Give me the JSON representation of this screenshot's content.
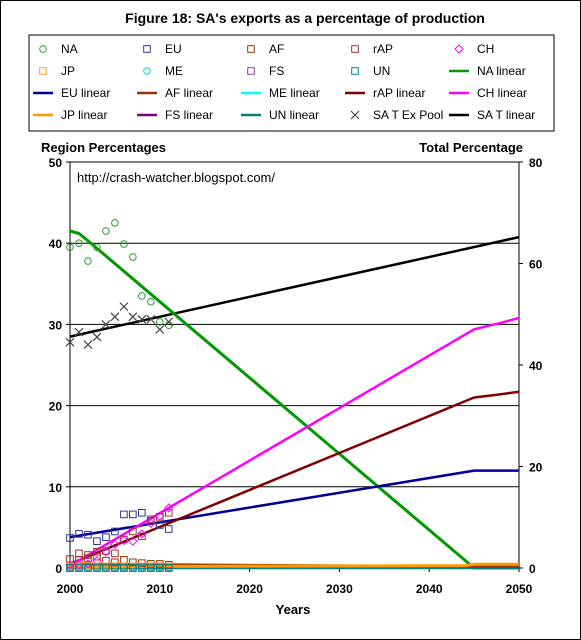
{
  "chart_data": {
    "type": "scatter",
    "title": "Figure 18: SA's exports as a percentage of production",
    "watermark": "http://crash-watcher.blogspot.com/",
    "xlabel": "Years",
    "ylabel_left": "Region Percentages",
    "ylabel_right": "Total Percentage",
    "xlim": [
      2000,
      2050
    ],
    "ylim_left": [
      0,
      50
    ],
    "ylim_right": [
      0,
      80
    ],
    "x_ticks": [
      "2000",
      "2010",
      "2020",
      "2030",
      "2040",
      "2050"
    ],
    "y_left_ticks": [
      "0",
      "10",
      "20",
      "30",
      "40",
      "50"
    ],
    "y_right_ticks": [
      "0",
      "20",
      "40",
      "60",
      "80"
    ],
    "grid": "horizontal",
    "legend_placement": "top",
    "legend": [
      {
        "label": "NA",
        "kind": "marker",
        "marker": "circle",
        "color": "#339933"
      },
      {
        "label": "EU",
        "kind": "marker",
        "marker": "square",
        "color": "#333399"
      },
      {
        "label": "AF",
        "kind": "marker",
        "marker": "square",
        "color": "#993300"
      },
      {
        "label": "rAP",
        "kind": "marker",
        "marker": "square",
        "color": "#993333"
      },
      {
        "label": "CH",
        "kind": "marker",
        "marker": "diamond",
        "color": "#ff00ff"
      },
      {
        "label": "JP",
        "kind": "marker",
        "marker": "square",
        "color": "#ff9933"
      },
      {
        "label": "ME",
        "kind": "marker",
        "marker": "circle",
        "color": "#00cccc"
      },
      {
        "label": "FS",
        "kind": "marker",
        "marker": "square",
        "color": "#993399"
      },
      {
        "label": "UN",
        "kind": "marker",
        "marker": "square",
        "color": "#008080"
      },
      {
        "label": "NA linear",
        "kind": "line",
        "color": "#009900"
      },
      {
        "label": "EU linear",
        "kind": "line",
        "color": "#000099"
      },
      {
        "label": "AF linear",
        "kind": "line",
        "color": "#993300"
      },
      {
        "label": "ME linear",
        "kind": "line",
        "color": "#00ffff"
      },
      {
        "label": "rAP linear",
        "kind": "line",
        "color": "#800000"
      },
      {
        "label": "CH linear",
        "kind": "line",
        "color": "#ff00ff"
      },
      {
        "label": "JP linear",
        "kind": "line",
        "color": "#ff9900"
      },
      {
        "label": "FS linear",
        "kind": "line",
        "color": "#800080"
      },
      {
        "label": "UN linear",
        "kind": "line",
        "color": "#008080"
      },
      {
        "label": "SA T Ex Pool",
        "kind": "marker",
        "marker": "x",
        "color": "#444444"
      },
      {
        "label": "SA T linear",
        "kind": "line",
        "color": "#000000"
      }
    ],
    "scatter_series": [
      {
        "name": "NA",
        "axis": "left",
        "marker": "circle",
        "color": "#339933",
        "points": [
          [
            2000,
            39.5
          ],
          [
            2001,
            40
          ],
          [
            2002,
            37.8
          ],
          [
            2003,
            39.5
          ],
          [
            2004,
            41.5
          ],
          [
            2005,
            42.5
          ],
          [
            2006,
            39.9
          ],
          [
            2007,
            38.3
          ],
          [
            2008,
            33.5
          ],
          [
            2009,
            32.8
          ],
          [
            2010,
            30.3
          ],
          [
            2011,
            29.9
          ]
        ]
      },
      {
        "name": "EU",
        "axis": "left",
        "marker": "square",
        "color": "#333399",
        "points": [
          [
            2000,
            3.7
          ],
          [
            2001,
            4.2
          ],
          [
            2002,
            4.1
          ],
          [
            2003,
            3.3
          ],
          [
            2004,
            3.8
          ],
          [
            2005,
            4.5
          ],
          [
            2006,
            6.6
          ],
          [
            2007,
            6.6
          ],
          [
            2008,
            6.8
          ],
          [
            2009,
            5.8
          ],
          [
            2010,
            5.3
          ],
          [
            2011,
            4.8
          ]
        ]
      },
      {
        "name": "AF",
        "axis": "left",
        "marker": "square",
        "color": "#993300",
        "points": [
          [
            2000,
            1.1
          ],
          [
            2001,
            1.0
          ],
          [
            2002,
            1.2
          ],
          [
            2003,
            1.4
          ],
          [
            2004,
            0.9
          ],
          [
            2005,
            0.7
          ],
          [
            2006,
            1.0
          ],
          [
            2007,
            0.7
          ],
          [
            2008,
            0.6
          ],
          [
            2009,
            0.5
          ],
          [
            2010,
            0.5
          ],
          [
            2011,
            0.4
          ]
        ]
      },
      {
        "name": "rAP",
        "axis": "left",
        "marker": "square",
        "color": "#993333",
        "points": [
          [
            2000,
            0.2
          ],
          [
            2001,
            1.8
          ],
          [
            2002,
            1.6
          ],
          [
            2003,
            2.0
          ],
          [
            2004,
            2.1
          ],
          [
            2005,
            1.8
          ],
          [
            2006,
            3.5
          ],
          [
            2007,
            4.5
          ],
          [
            2008,
            3.9
          ],
          [
            2009,
            6.0
          ],
          [
            2010,
            6.3
          ],
          [
            2011,
            6.8
          ]
        ]
      },
      {
        "name": "CH",
        "axis": "left",
        "marker": "diamond",
        "color": "#ff00ff",
        "points": [
          [
            2000,
            0.4
          ],
          [
            2001,
            0.4
          ],
          [
            2002,
            0.5
          ],
          [
            2003,
            0.9
          ],
          [
            2004,
            2.0
          ],
          [
            2005,
            2.9
          ],
          [
            2006,
            3.4
          ],
          [
            2007,
            3.3
          ],
          [
            2008,
            4.2
          ],
          [
            2009,
            5.5
          ],
          [
            2010,
            6.4
          ],
          [
            2011,
            7.4
          ]
        ]
      },
      {
        "name": "JP",
        "axis": "left",
        "marker": "square",
        "color": "#ff9933",
        "points": [
          [
            2000,
            0.2
          ],
          [
            2001,
            0.2
          ],
          [
            2002,
            0.3
          ],
          [
            2003,
            0.2
          ],
          [
            2004,
            0.2
          ],
          [
            2005,
            0.2
          ],
          [
            2006,
            0.2
          ],
          [
            2007,
            0.2
          ],
          [
            2008,
            0.2
          ],
          [
            2009,
            0.2
          ],
          [
            2010,
            0.2
          ],
          [
            2011,
            0.2
          ]
        ]
      },
      {
        "name": "ME",
        "axis": "left",
        "marker": "circle",
        "color": "#00cccc",
        "points": [
          [
            2000,
            0.1
          ],
          [
            2001,
            0.1
          ],
          [
            2002,
            0.1
          ],
          [
            2003,
            0.1
          ],
          [
            2004,
            0.1
          ],
          [
            2005,
            0.1
          ],
          [
            2006,
            0.1
          ],
          [
            2007,
            0.1
          ],
          [
            2008,
            0.1
          ],
          [
            2009,
            0.1
          ],
          [
            2010,
            0.1
          ],
          [
            2011,
            0.1
          ]
        ]
      },
      {
        "name": "FS",
        "axis": "left",
        "marker": "square",
        "color": "#993399",
        "points": [
          [
            2000,
            0.0
          ],
          [
            2001,
            0.0
          ],
          [
            2002,
            0.0
          ],
          [
            2003,
            0.0
          ],
          [
            2004,
            0.0
          ],
          [
            2005,
            0.0
          ],
          [
            2006,
            0.0
          ],
          [
            2007,
            0.0
          ],
          [
            2008,
            0.0
          ],
          [
            2009,
            0.0
          ],
          [
            2010,
            0.0
          ],
          [
            2011,
            0.0
          ]
        ]
      },
      {
        "name": "UN",
        "axis": "left",
        "marker": "square",
        "color": "#008080",
        "points": [
          [
            2000,
            0.0
          ],
          [
            2001,
            0.0
          ],
          [
            2002,
            0.0
          ],
          [
            2003,
            0.0
          ],
          [
            2004,
            0.0
          ],
          [
            2005,
            0.0
          ],
          [
            2006,
            0.0
          ],
          [
            2007,
            0.0
          ],
          [
            2008,
            0.0
          ],
          [
            2009,
            0.0
          ],
          [
            2010,
            0.0
          ],
          [
            2011,
            0.0
          ]
        ]
      },
      {
        "name": "SA T Ex Pool",
        "axis": "right",
        "marker": "x",
        "color": "#444444",
        "points": [
          [
            2000,
            44.5
          ],
          [
            2001,
            46.5
          ],
          [
            2002,
            44.0
          ],
          [
            2003,
            45.5
          ],
          [
            2004,
            48.0
          ],
          [
            2005,
            49.5
          ],
          [
            2006,
            51.5
          ],
          [
            2007,
            49.5
          ],
          [
            2008,
            49.0
          ],
          [
            2009,
            49.0
          ],
          [
            2010,
            47.0
          ],
          [
            2011,
            48.5
          ]
        ]
      }
    ],
    "line_series": [
      {
        "name": "NA linear",
        "axis": "left",
        "color": "#009900",
        "width": 3,
        "points": [
          [
            2000,
            41.5
          ],
          [
            2001,
            41.2
          ],
          [
            2002,
            40.3
          ],
          [
            2045,
            0
          ],
          [
            2050,
            0
          ]
        ]
      },
      {
        "name": "EU linear",
        "axis": "left",
        "color": "#000099",
        "width": 2.5,
        "points": [
          [
            2000,
            3.8
          ],
          [
            2045,
            12
          ],
          [
            2050,
            12
          ]
        ]
      },
      {
        "name": "AF linear",
        "axis": "left",
        "color": "#993300",
        "width": 2.5,
        "points": [
          [
            2000,
            0.5
          ],
          [
            2044,
            0.2
          ],
          [
            2050,
            0.2
          ]
        ]
      },
      {
        "name": "ME linear",
        "axis": "left",
        "color": "#00ffff",
        "width": 2,
        "points": [
          [
            2000,
            0.1
          ],
          [
            2050,
            0.1
          ]
        ]
      },
      {
        "name": "rAP linear",
        "axis": "left",
        "color": "#800000",
        "width": 2.5,
        "points": [
          [
            2000,
            0.5
          ],
          [
            2045,
            21
          ],
          [
            2048,
            21.4
          ],
          [
            2050,
            21.7
          ]
        ]
      },
      {
        "name": "CH linear",
        "axis": "left",
        "color": "#ff00ff",
        "width": 2.5,
        "points": [
          [
            2000,
            0.3
          ],
          [
            2045,
            29.4
          ],
          [
            2048,
            30.2
          ],
          [
            2050,
            30.8
          ]
        ]
      },
      {
        "name": "JP linear",
        "axis": "left",
        "color": "#ff9900",
        "width": 3,
        "points": [
          [
            2000,
            0.1
          ],
          [
            2011,
            0.2
          ],
          [
            2044,
            0.3
          ],
          [
            2045,
            0.45
          ],
          [
            2050,
            0.45
          ]
        ]
      },
      {
        "name": "FS linear",
        "axis": "left",
        "color": "#800080",
        "width": 2,
        "points": [
          [
            2000,
            0.0
          ],
          [
            2050,
            0.0
          ]
        ]
      },
      {
        "name": "UN linear",
        "axis": "left",
        "color": "#008080",
        "width": 2.5,
        "points": [
          [
            2000,
            0.0
          ],
          [
            2050,
            0.0
          ]
        ]
      },
      {
        "name": "SA T linear",
        "axis": "right",
        "color": "#000000",
        "width": 2.5,
        "points": [
          [
            2000,
            45.6
          ],
          [
            2050,
            65.2
          ]
        ]
      }
    ]
  }
}
